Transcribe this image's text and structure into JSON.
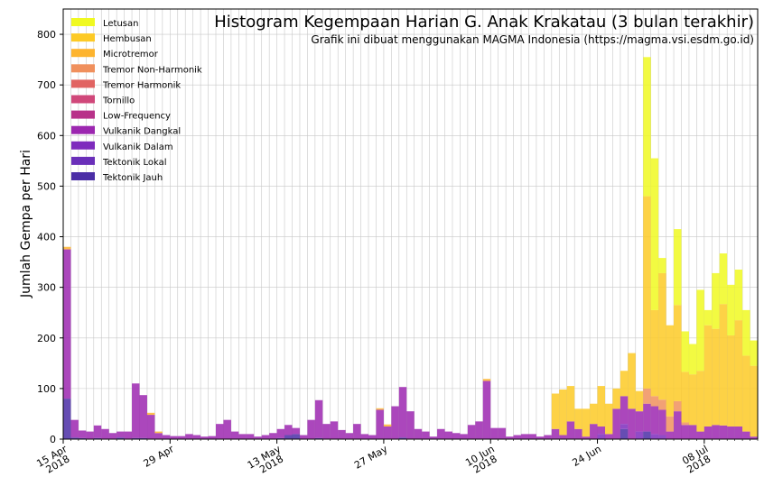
{
  "chart_data": {
    "type": "bar",
    "stacked": true,
    "title": "Histogram Kegempaan Harian G. Anak Krakatau (3 bulan terakhir)",
    "subtitle": "Grafik ini dibuat menggunakan MAGMA Indonesia (https://magma.vsi.esdm.go.id)",
    "xlabel": "",
    "ylabel": "Jumlah Gempa per Hari",
    "ylim": [
      0,
      850
    ],
    "yticks": [
      0,
      100,
      200,
      300,
      400,
      500,
      600,
      700,
      800
    ],
    "grid": true,
    "legend_position": "top-left",
    "x_start": "2018-04-15",
    "x_end": "2018-07-15",
    "xticks": [
      {
        "date": "2018-04-15",
        "label": [
          "15 Apr",
          "2018"
        ]
      },
      {
        "date": "2018-04-29",
        "label": [
          "29 Apr"
        ]
      },
      {
        "date": "2018-05-13",
        "label": [
          "13 May",
          "2018"
        ]
      },
      {
        "date": "2018-05-27",
        "label": [
          "27 May"
        ]
      },
      {
        "date": "2018-06-10",
        "label": [
          "10 Jun",
          "2018"
        ]
      },
      {
        "date": "2018-06-24",
        "label": [
          "24 Jun"
        ]
      },
      {
        "date": "2018-07-08",
        "label": [
          "08 Jul",
          "2018"
        ]
      }
    ],
    "dates": [
      "2018-04-15",
      "2018-04-16",
      "2018-04-17",
      "2018-04-18",
      "2018-04-19",
      "2018-04-20",
      "2018-04-21",
      "2018-04-22",
      "2018-04-23",
      "2018-04-24",
      "2018-04-25",
      "2018-04-26",
      "2018-04-27",
      "2018-04-28",
      "2018-04-29",
      "2018-04-30",
      "2018-05-01",
      "2018-05-02",
      "2018-05-03",
      "2018-05-04",
      "2018-05-05",
      "2018-05-06",
      "2018-05-07",
      "2018-05-08",
      "2018-05-09",
      "2018-05-10",
      "2018-05-11",
      "2018-05-12",
      "2018-05-13",
      "2018-05-14",
      "2018-05-15",
      "2018-05-16",
      "2018-05-17",
      "2018-05-18",
      "2018-05-19",
      "2018-05-20",
      "2018-05-21",
      "2018-05-22",
      "2018-05-23",
      "2018-05-24",
      "2018-05-25",
      "2018-05-26",
      "2018-05-27",
      "2018-05-28",
      "2018-05-29",
      "2018-05-30",
      "2018-05-31",
      "2018-06-01",
      "2018-06-02",
      "2018-06-03",
      "2018-06-04",
      "2018-06-05",
      "2018-06-06",
      "2018-06-07",
      "2018-06-08",
      "2018-06-09",
      "2018-06-10",
      "2018-06-11",
      "2018-06-12",
      "2018-06-13",
      "2018-06-14",
      "2018-06-15",
      "2018-06-16",
      "2018-06-17",
      "2018-06-18",
      "2018-06-19",
      "2018-06-20",
      "2018-06-21",
      "2018-06-22",
      "2018-06-23",
      "2018-06-24",
      "2018-06-25",
      "2018-06-26",
      "2018-06-27",
      "2018-06-28",
      "2018-06-29",
      "2018-06-30",
      "2018-07-01",
      "2018-07-02",
      "2018-07-03",
      "2018-07-04",
      "2018-07-05",
      "2018-07-06",
      "2018-07-07",
      "2018-07-08",
      "2018-07-09",
      "2018-07-10",
      "2018-07-11",
      "2018-07-12",
      "2018-07-13",
      "2018-07-14"
    ],
    "series": [
      {
        "name": "Letusan",
        "color": "#f0f921",
        "values": [
          0,
          0,
          0,
          0,
          0,
          0,
          0,
          0,
          0,
          0,
          0,
          0,
          0,
          0,
          0,
          0,
          0,
          0,
          0,
          0,
          0,
          0,
          0,
          0,
          0,
          0,
          0,
          0,
          0,
          0,
          0,
          0,
          0,
          0,
          0,
          0,
          0,
          0,
          0,
          0,
          0,
          0,
          0,
          0,
          0,
          0,
          0,
          0,
          0,
          0,
          0,
          0,
          0,
          0,
          0,
          0,
          0,
          0,
          0,
          0,
          0,
          0,
          0,
          0,
          0,
          0,
          0,
          0,
          0,
          0,
          0,
          0,
          0,
          0,
          0,
          0,
          275,
          300,
          30,
          0,
          150,
          80,
          60,
          160,
          30,
          110,
          100,
          100,
          100,
          90,
          50
        ]
      },
      {
        "name": "Hembusan",
        "color": "#fdca26",
        "values": [
          0,
          0,
          0,
          0,
          0,
          0,
          0,
          0,
          0,
          0,
          0,
          0,
          0,
          0,
          0,
          0,
          0,
          0,
          0,
          0,
          0,
          0,
          0,
          0,
          0,
          0,
          0,
          0,
          0,
          0,
          0,
          0,
          0,
          0,
          0,
          0,
          0,
          0,
          0,
          0,
          0,
          0,
          0,
          0,
          0,
          0,
          0,
          0,
          0,
          0,
          0,
          0,
          0,
          0,
          0,
          0,
          0,
          0,
          0,
          0,
          0,
          0,
          0,
          0,
          70,
          90,
          70,
          40,
          55,
          40,
          80,
          60,
          40,
          50,
          110,
          40,
          380,
          170,
          250,
          180,
          190,
          100,
          100,
          120,
          200,
          190,
          240,
          180,
          210,
          150,
          140
        ]
      },
      {
        "name": "Microtremor",
        "color": "#fdb42f",
        "values": [
          5,
          0,
          0,
          0,
          0,
          0,
          0,
          0,
          0,
          0,
          0,
          4,
          3,
          0,
          0,
          0,
          0,
          0,
          0,
          0,
          0,
          0,
          0,
          0,
          0,
          0,
          0,
          0,
          0,
          0,
          0,
          0,
          0,
          0,
          0,
          0,
          0,
          0,
          0,
          0,
          0,
          3,
          4,
          0,
          0,
          0,
          0,
          0,
          0,
          0,
          0,
          0,
          0,
          0,
          0,
          4,
          0,
          0,
          0,
          0,
          0,
          0,
          0,
          0,
          0,
          0,
          0,
          0,
          0,
          0,
          0,
          0,
          0,
          0,
          0,
          0,
          0,
          0,
          0,
          0,
          0,
          0,
          0,
          0,
          0,
          0,
          0,
          0,
          0,
          0,
          0
        ]
      },
      {
        "name": "Tremor Non-Harmonik",
        "color": "#f0905d",
        "values": [
          0,
          0,
          0,
          0,
          0,
          0,
          0,
          0,
          0,
          0,
          0,
          0,
          0,
          0,
          0,
          0,
          0,
          0,
          0,
          0,
          0,
          0,
          0,
          0,
          0,
          0,
          0,
          0,
          0,
          0,
          0,
          0,
          0,
          0,
          0,
          0,
          0,
          0,
          0,
          0,
          0,
          0,
          0,
          0,
          0,
          0,
          0,
          0,
          0,
          0,
          0,
          0,
          0,
          0,
          0,
          0,
          0,
          0,
          0,
          0,
          0,
          0,
          0,
          0,
          0,
          0,
          0,
          0,
          0,
          0,
          0,
          0,
          0,
          0,
          0,
          0,
          30,
          20,
          20,
          30,
          20,
          5,
          0,
          0,
          0,
          0,
          0,
          0,
          0,
          0,
          0
        ]
      },
      {
        "name": "Tremor Harmonik",
        "color": "#e16462",
        "values": [
          0,
          0,
          0,
          0,
          0,
          0,
          0,
          0,
          0,
          0,
          0,
          0,
          0,
          0,
          0,
          0,
          0,
          0,
          0,
          0,
          0,
          0,
          0,
          0,
          0,
          0,
          0,
          0,
          0,
          0,
          0,
          0,
          0,
          0,
          0,
          0,
          0,
          0,
          0,
          0,
          0,
          0,
          0,
          0,
          0,
          0,
          0,
          0,
          0,
          0,
          0,
          0,
          0,
          0,
          0,
          0,
          0,
          0,
          0,
          0,
          0,
          0,
          0,
          0,
          0,
          0,
          0,
          0,
          0,
          0,
          0,
          0,
          0,
          0,
          0,
          0,
          0,
          0,
          0,
          0,
          0,
          0,
          0,
          0,
          0,
          0,
          0,
          0,
          0,
          0,
          0
        ]
      },
      {
        "name": "Tornillo",
        "color": "#d0487a",
        "values": [
          0,
          0,
          0,
          0,
          0,
          0,
          0,
          0,
          0,
          0,
          0,
          0,
          0,
          0,
          0,
          0,
          0,
          0,
          0,
          0,
          0,
          0,
          0,
          0,
          0,
          0,
          0,
          0,
          0,
          0,
          0,
          0,
          0,
          0,
          0,
          0,
          0,
          0,
          0,
          0,
          0,
          0,
          0,
          0,
          0,
          0,
          0,
          0,
          0,
          0,
          0,
          0,
          0,
          0,
          0,
          0,
          0,
          0,
          0,
          0,
          0,
          0,
          0,
          0,
          0,
          0,
          0,
          0,
          0,
          0,
          0,
          0,
          0,
          0,
          0,
          0,
          0,
          0,
          0,
          0,
          0,
          0,
          0,
          0,
          0,
          0,
          0,
          0,
          0,
          0,
          0
        ]
      },
      {
        "name": "Low-Frequency",
        "color": "#b83289",
        "values": [
          0,
          0,
          0,
          0,
          0,
          0,
          0,
          0,
          0,
          0,
          0,
          0,
          0,
          0,
          0,
          0,
          0,
          0,
          0,
          0,
          0,
          0,
          0,
          0,
          0,
          0,
          0,
          0,
          0,
          0,
          0,
          0,
          0,
          0,
          0,
          0,
          0,
          0,
          0,
          0,
          0,
          0,
          0,
          0,
          0,
          0,
          0,
          0,
          0,
          0,
          0,
          0,
          0,
          0,
          0,
          0,
          0,
          0,
          0,
          0,
          0,
          0,
          0,
          0,
          0,
          0,
          0,
          0,
          0,
          0,
          0,
          0,
          0,
          0,
          0,
          0,
          0,
          0,
          0,
          0,
          0,
          0,
          0,
          0,
          0,
          0,
          0,
          0,
          0,
          0,
          0
        ]
      },
      {
        "name": "Vulkanik Dangkal",
        "color": "#9c27b0",
        "values": [
          295,
          35,
          15,
          15,
          25,
          20,
          12,
          12,
          15,
          108,
          85,
          48,
          12,
          8,
          6,
          6,
          10,
          8,
          5,
          6,
          30,
          38,
          15,
          10,
          10,
          5,
          8,
          12,
          18,
          20,
          12,
          8,
          38,
          75,
          30,
          35,
          18,
          12,
          30,
          10,
          8,
          58,
          25,
          65,
          100,
          55,
          20,
          15,
          5,
          20,
          15,
          12,
          10,
          28,
          35,
          115,
          22,
          22,
          5,
          8,
          10,
          10,
          5,
          8,
          20,
          8,
          35,
          20,
          5,
          30,
          15,
          10,
          60,
          55,
          60,
          40,
          55,
          55,
          50,
          15,
          55,
          28,
          28,
          15,
          25,
          28,
          27,
          25,
          25,
          15,
          5
        ]
      },
      {
        "name": "Vulkanik Dalam",
        "color": "#7e2bbd",
        "values": [
          0,
          0,
          0,
          0,
          0,
          0,
          0,
          0,
          0,
          0,
          0,
          0,
          0,
          0,
          0,
          0,
          0,
          0,
          0,
          0,
          0,
          0,
          0,
          0,
          0,
          0,
          0,
          0,
          0,
          0,
          0,
          0,
          0,
          0,
          0,
          0,
          0,
          0,
          0,
          0,
          0,
          0,
          0,
          0,
          0,
          0,
          0,
          0,
          0,
          0,
          0,
          0,
          0,
          0,
          0,
          0,
          0,
          0,
          0,
          0,
          0,
          0,
          0,
          0,
          0,
          0,
          0,
          0,
          0,
          0,
          10,
          0,
          0,
          10,
          0,
          15,
          0,
          10,
          8,
          0,
          0,
          0,
          0,
          0,
          0,
          0,
          0,
          0,
          0,
          0,
          0
        ]
      },
      {
        "name": "Tektonik Lokal",
        "color": "#6a2fb9",
        "values": [
          0,
          0,
          0,
          0,
          0,
          0,
          0,
          0,
          0,
          0,
          0,
          0,
          0,
          0,
          0,
          0,
          0,
          0,
          0,
          0,
          0,
          0,
          0,
          0,
          0,
          0,
          0,
          0,
          0,
          0,
          0,
          0,
          0,
          0,
          0,
          0,
          0,
          0,
          0,
          0,
          0,
          0,
          0,
          0,
          0,
          0,
          0,
          0,
          0,
          0,
          0,
          0,
          0,
          0,
          0,
          0,
          0,
          0,
          0,
          0,
          0,
          0,
          0,
          0,
          0,
          0,
          0,
          0,
          0,
          0,
          0,
          0,
          0,
          0,
          0,
          0,
          0,
          0,
          0,
          0,
          0,
          0,
          0,
          0,
          0,
          0,
          0,
          0,
          0,
          0,
          0
        ]
      },
      {
        "name": "Tektonik Jauh",
        "color": "#4b2ea6",
        "values": [
          80,
          3,
          2,
          0,
          2,
          0,
          0,
          3,
          0,
          2,
          2,
          0,
          0,
          0,
          0,
          0,
          0,
          0,
          0,
          0,
          0,
          0,
          0,
          0,
          0,
          0,
          0,
          0,
          2,
          8,
          10,
          0,
          0,
          2,
          0,
          0,
          0,
          0,
          0,
          0,
          0,
          0,
          0,
          0,
          3,
          0,
          0,
          0,
          0,
          0,
          0,
          0,
          0,
          0,
          0,
          0,
          0,
          0,
          0,
          0,
          0,
          0,
          0,
          0,
          0,
          0,
          0,
          0,
          0,
          0,
          0,
          0,
          0,
          20,
          0,
          0,
          15,
          0,
          0,
          0,
          0,
          0,
          0,
          0,
          0,
          0,
          0,
          0,
          0,
          0,
          0
        ]
      }
    ]
  }
}
